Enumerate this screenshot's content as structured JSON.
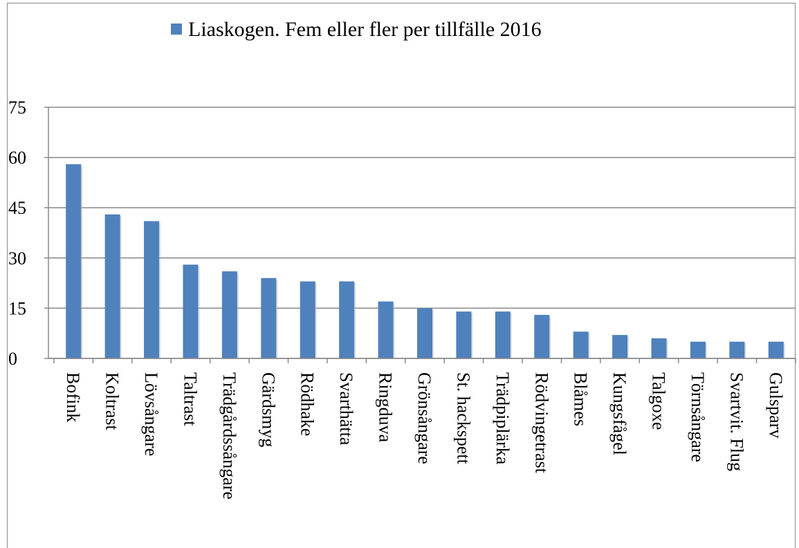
{
  "chart_data": {
    "type": "bar",
    "categories": [
      "Bofink",
      "Koltrast",
      "Lövsångare",
      "Taltrast",
      "Trädgårdssångare",
      "Gärdsmyg",
      "Rödhake",
      "Svarthätta",
      "Ringduva",
      "Grönsångare",
      "St. hackspett",
      "Trädpiplärka",
      "Rödvingetrast",
      "Blåmes",
      "Kungsfågel",
      "Talgoxe",
      "Törnsångare",
      "Svartvit. Flug",
      "Gulsparv"
    ],
    "series": [
      {
        "name": "Liaskogen. Fem eller fler per tillfälle 2016",
        "color": "#4f81bd",
        "values": [
          58,
          43,
          41,
          28,
          26,
          24,
          23,
          23,
          17,
          15,
          14,
          14,
          13,
          8,
          7,
          6,
          5,
          5,
          5
        ]
      }
    ],
    "ylim": [
      0,
      75
    ],
    "yticks": [
      0,
      15,
      30,
      45,
      60,
      75
    ],
    "grid": true,
    "legend": "top"
  }
}
